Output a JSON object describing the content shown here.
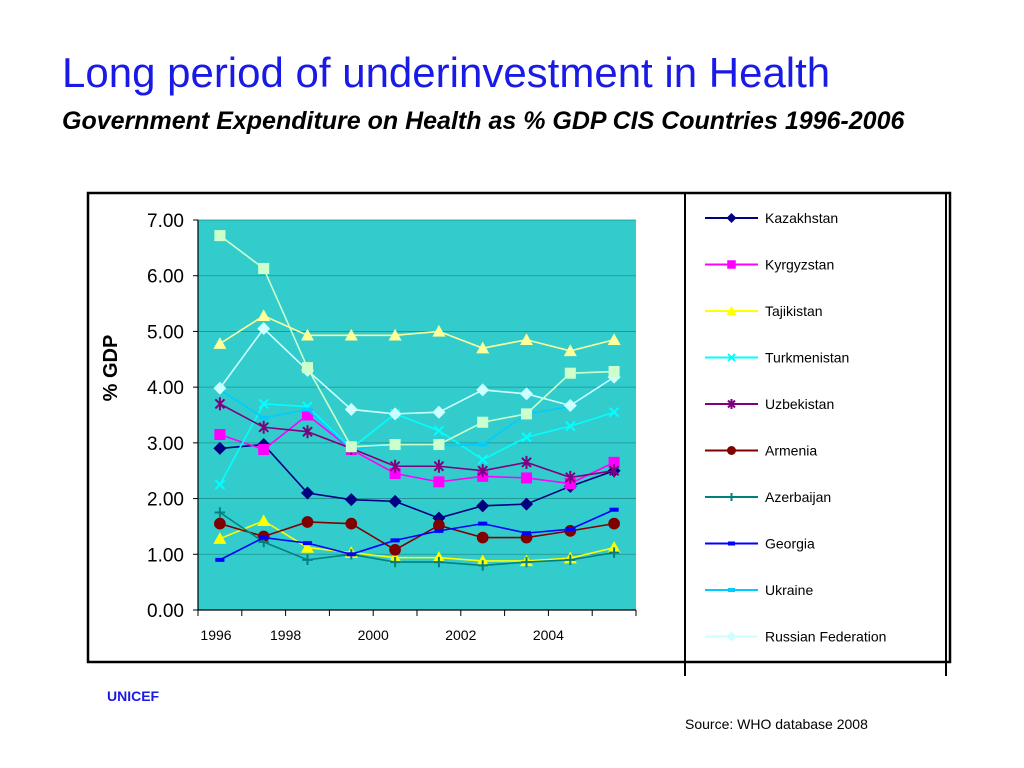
{
  "slide": {
    "title": "Long period of underinvestment in Health",
    "subtitle": "Government Expenditure on Health as % GDP CIS Countries  1996-2006",
    "org": "UNICEF",
    "source": "Source: WHO database 2008"
  },
  "chart_data": {
    "type": "line",
    "ylabel": "% GDP",
    "ylim": [
      0,
      7
    ],
    "yticks": [
      "0.00",
      "1.00",
      "2.00",
      "3.00",
      "4.00",
      "5.00",
      "6.00",
      "7.00"
    ],
    "x": [
      1996,
      1997,
      1998,
      1999,
      2000,
      2001,
      2002,
      2003,
      2004,
      2005
    ],
    "xtick_labels": [
      "1996",
      "1998",
      "2000",
      "2002",
      "2004"
    ],
    "grid": "horizontal",
    "plot_background": "#33cccc",
    "legend_position": "right",
    "series": [
      {
        "name": "Kazakhstan",
        "color": "#000080",
        "marker": "diamond",
        "values": [
          2.9,
          2.97,
          2.1,
          1.98,
          1.95,
          1.65,
          1.87,
          1.9,
          2.22,
          2.5
        ]
      },
      {
        "name": "Kyrgyzstan",
        "color": "#ff00ff",
        "marker": "square",
        "values": [
          3.15,
          2.88,
          3.5,
          2.88,
          2.45,
          2.3,
          2.4,
          2.37,
          2.27,
          2.65
        ]
      },
      {
        "name": "Tajikistan",
        "color": "#ffff00",
        "marker": "triangle",
        "values": [
          1.28,
          1.6,
          1.12,
          1.03,
          0.94,
          0.94,
          0.88,
          0.88,
          0.93,
          1.12
        ]
      },
      {
        "name": "Turkmenistan",
        "color": "#00ffff",
        "marker": "x",
        "values": [
          2.25,
          3.7,
          3.65,
          2.9,
          3.52,
          3.22,
          2.7,
          3.1,
          3.3,
          3.55
        ]
      },
      {
        "name": "Uzbekistan",
        "color": "#800080",
        "marker": "star",
        "values": [
          3.7,
          3.28,
          3.2,
          2.9,
          2.58,
          2.58,
          2.5,
          2.65,
          2.38,
          2.5
        ]
      },
      {
        "name": "Armenia",
        "color": "#800000",
        "marker": "circle",
        "values": [
          1.55,
          1.32,
          1.58,
          1.55,
          1.08,
          1.52,
          1.3,
          1.3,
          1.42,
          1.55
        ]
      },
      {
        "name": "Azerbaijan",
        "color": "#008080",
        "marker": "plus",
        "values": [
          1.75,
          1.22,
          0.9,
          1.0,
          0.86,
          0.86,
          0.8,
          0.86,
          0.9,
          1.03
        ]
      },
      {
        "name": "Georgia",
        "color": "#0000ff",
        "marker": "dash",
        "values": [
          0.9,
          1.3,
          1.2,
          1.0,
          1.25,
          1.42,
          1.55,
          1.38,
          1.45,
          1.8
        ]
      },
      {
        "name": "Ukraine",
        "color": "#00ccff",
        "marker": "dash",
        "values": [
          3.95,
          3.45,
          3.6,
          2.88,
          2.98,
          2.95,
          2.97,
          3.52,
          3.65,
          4.2
        ]
      },
      {
        "name": "Russian Federation",
        "color": "#ccffff",
        "marker": "diamond",
        "values": [
          3.98,
          5.05,
          4.3,
          3.6,
          3.52,
          3.55,
          3.95,
          3.88,
          3.67,
          4.18
        ]
      },
      {
        "name": "",
        "color": "#ccffcc",
        "marker": "square",
        "legend": false,
        "values": [
          6.72,
          6.13,
          4.35,
          2.93,
          2.97,
          2.97,
          3.37,
          3.52,
          4.25,
          4.28
        ]
      },
      {
        "name": "",
        "color": "#ffff99",
        "marker": "triangle",
        "legend": false,
        "values": [
          4.78,
          5.28,
          4.93,
          4.93,
          4.93,
          5.0,
          4.7,
          4.85,
          4.65,
          4.85
        ]
      }
    ]
  }
}
